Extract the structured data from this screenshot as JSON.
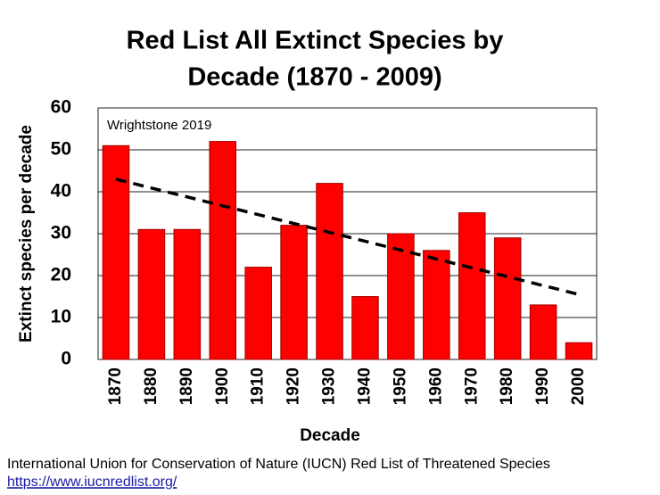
{
  "chart_data": {
    "type": "bar",
    "title": [
      "Red List All Extinct Species by",
      "Decade (1870 - 2009)"
    ],
    "annotation": "Wrightstone 2019",
    "x_label": "Decade",
    "y_label": "Extinct species per decade",
    "categories": [
      "1870",
      "1880",
      "1890",
      "1900",
      "1910",
      "1920",
      "1930",
      "1940",
      "1950",
      "1960",
      "1970",
      "1980",
      "1990",
      "2000"
    ],
    "values": [
      51,
      31,
      31,
      52,
      22,
      32,
      42,
      15,
      30,
      26,
      35,
      29,
      13,
      4
    ],
    "color": "#ff0000",
    "trendline": [
      43,
      15.5
    ],
    "ylim": [
      0,
      60
    ],
    "yticks": [
      0,
      10,
      20,
      30,
      40,
      50,
      60
    ],
    "grid": true
  },
  "footer": {
    "source": "International Union for Conservation of Nature (IUCN) Red List of Threatened Species",
    "link": "https://www.iucnredlist.org/"
  }
}
